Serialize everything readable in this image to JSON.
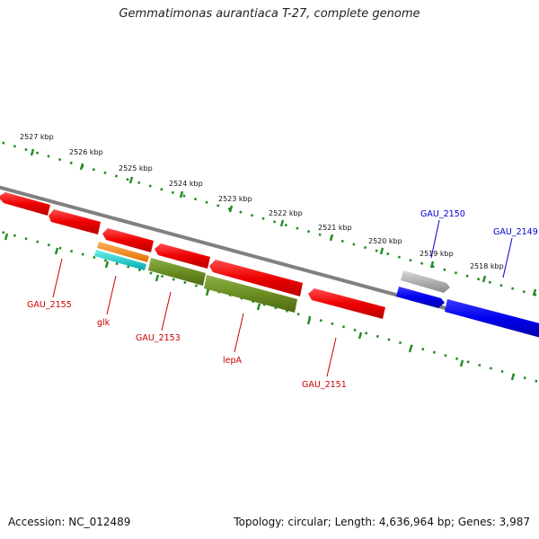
{
  "title": "Gemmatimonas aurantiaca T-27, complete genome",
  "footer": {
    "accession": "Accession: NC_012489",
    "summary": "Topology: circular; Length: 4,636,964 bp; Genes: 3,987"
  },
  "scale_ticks": [
    "2527 kbp",
    "2526 kbp",
    "2525 kbp",
    "2524 kbp",
    "2523 kbp",
    "2522 kbp",
    "2521 kbp",
    "2520 kbp",
    "2519 kbp",
    "2518 kbp"
  ],
  "genes": [
    {
      "name": "GAU_2155",
      "label_color": "#cc0000",
      "fill": "#ee0000"
    },
    {
      "name": "glk",
      "label_color": "#cc0000",
      "fill": "#ff8c1a"
    },
    {
      "name": "GAU_2153",
      "label_color": "#cc0000",
      "fill": "#6b8e23"
    },
    {
      "name": "lepA",
      "label_color": "#cc0000",
      "fill": "#6b8e23"
    },
    {
      "name": "GAU_2151",
      "label_color": "#cc0000",
      "fill": "#ee0000"
    },
    {
      "name": "GAU_2150",
      "label_color": "#0000cc",
      "fill": "#b0b0b0"
    },
    {
      "name": "GAU_2149",
      "label_color": "#0000cc",
      "fill": "#0000ee"
    }
  ],
  "colors": {
    "backbone": "#808080",
    "tick_dots": "#228b22",
    "red_gene": "#ee0000",
    "green_gene": "#6b8e23",
    "blue_gene": "#0000ee",
    "cyan_gene": "#00cccc",
    "orange_gene": "#ff8c1a",
    "grey_gene": "#b0b0b0"
  }
}
